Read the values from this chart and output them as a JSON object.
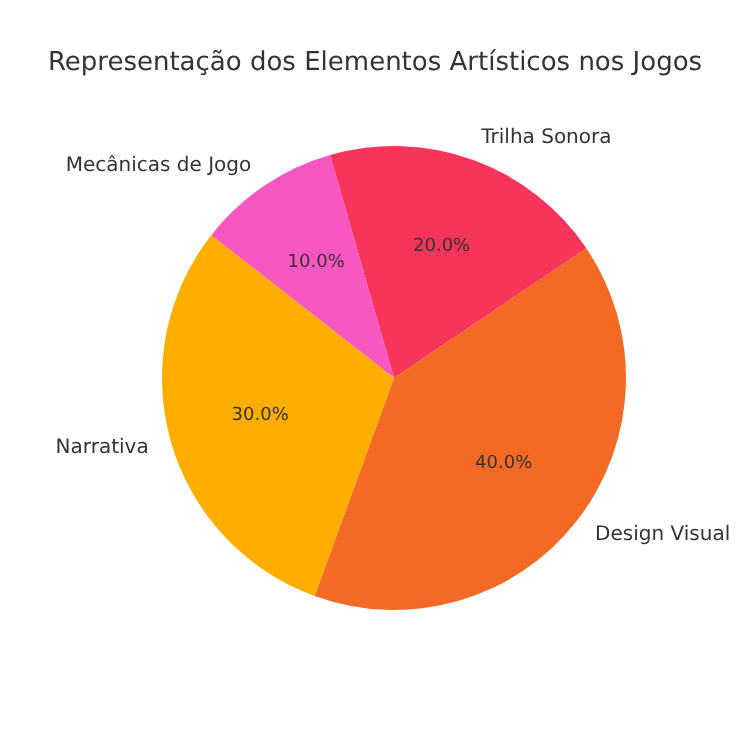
{
  "chart_data": {
    "type": "pie",
    "title": "Representação dos Elementos Artísticos nos Jogos",
    "categories": [
      "Design Visual",
      "Trilha Sonora",
      "Mecânicas de Jogo",
      "Narrativa"
    ],
    "values": [
      40,
      20,
      10,
      30
    ],
    "value_labels": [
      "40.0%",
      "20.0%",
      "10.0%",
      "30.0%"
    ],
    "colors": [
      "#f46a25",
      "#f7345a",
      "#f857c1",
      "#ffae00"
    ],
    "legend": false
  }
}
